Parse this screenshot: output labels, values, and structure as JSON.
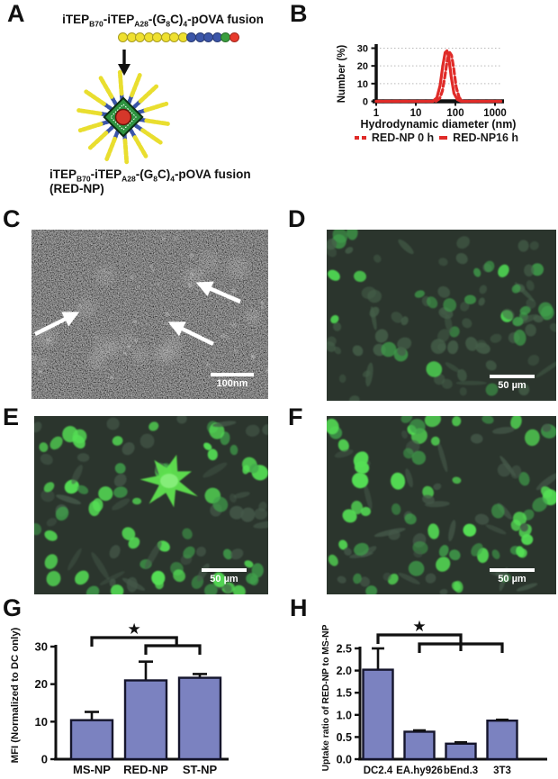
{
  "panels": {
    "a": {
      "label": "A",
      "formula_segments": [
        {
          "text": "iTEP"
        },
        {
          "text": "B70",
          "sub": true
        },
        {
          "text": "-iTEP"
        },
        {
          "text": "A28",
          "sub": true
        },
        {
          "text": "-(G"
        },
        {
          "text": "8",
          "sub": true
        },
        {
          "text": "C)"
        },
        {
          "text": "4",
          "sub": true
        },
        {
          "text": "-pOVA fusion"
        }
      ],
      "product_name": "(RED-NP)",
      "chain_segments": [
        {
          "name": "iTEP-B70-block",
          "color": "#efe02f",
          "count": 8
        },
        {
          "name": "iTEP-A28-block",
          "color": "#3b55a8",
          "count": 4
        },
        {
          "name": "G8C-linker",
          "color": "#3a9e3e",
          "count": 1
        },
        {
          "name": "pOVA",
          "color": "#e83a2c",
          "count": 1
        }
      ]
    },
    "b": {
      "label": "B"
    },
    "c": {
      "label": "C",
      "scale_bar_label": "100nm"
    },
    "d": {
      "label": "D",
      "scale_bar_label": "50 µm"
    },
    "e": {
      "label": "E",
      "scale_bar_label": "50 µm"
    },
    "f": {
      "label": "F",
      "scale_bar_label": "50 µm"
    },
    "g": {
      "label": "G"
    },
    "h": {
      "label": "H"
    }
  },
  "chart_data": [
    {
      "type": "line",
      "panel": "B",
      "xlabel": "Hydrodynamic diameter (nm)",
      "ylabel": "Number (%)",
      "x_scale": "log",
      "xlim": [
        1,
        1400
      ],
      "ylim": [
        0,
        30
      ],
      "xticks": [
        1,
        10,
        100,
        1000
      ],
      "xtick_labels": [
        "1",
        "10",
        "100",
        "1000"
      ],
      "yticks": [
        0,
        10,
        20,
        30
      ],
      "ytick_labels": [
        "0",
        "10",
        "20",
        "30"
      ],
      "grid": "dotted horizontal",
      "legend_position": "bottom",
      "series": [
        {
          "name": "RED-NP 0 h",
          "style": "dashed",
          "color": "#e02b28",
          "x": [
            32,
            40,
            47,
            55,
            63,
            72,
            80,
            90,
            105,
            125,
            155
          ],
          "y": [
            0,
            1.5,
            6,
            15,
            24,
            27.5,
            26,
            19,
            8,
            2,
            0
          ]
        },
        {
          "name": "RED-NP16 h",
          "style": "solid",
          "color": "#e02b28",
          "x": [
            27,
            34,
            41,
            48,
            55,
            61,
            68,
            78,
            92,
            112,
            140
          ],
          "y": [
            0,
            2,
            9,
            20,
            27.5,
            28.5,
            25,
            14,
            4.5,
            1,
            0
          ]
        }
      ]
    },
    {
      "type": "bar",
      "panel": "G",
      "categories": [
        "MS-NP",
        "RED-NP",
        "ST-NP"
      ],
      "values": [
        10.4,
        21,
        21.7
      ],
      "errors": [
        2.2,
        5,
        1
      ],
      "ylabel": "MFI (Normalized to DC only)",
      "ylim": [
        0,
        30
      ],
      "yticks": [
        0,
        10,
        20,
        30
      ],
      "ytick_labels": [
        "0",
        "10",
        "20",
        "30"
      ],
      "bar_color": "#7b82c0",
      "significance": {
        "symbol": "★",
        "brackets": [
          {
            "from": 0,
            "to": 1.57
          },
          {
            "from": 1,
            "to": 2
          }
        ]
      }
    },
    {
      "type": "bar",
      "panel": "H",
      "categories": [
        "DC2.4",
        "EA.hy926",
        "bEnd.3",
        "3T3"
      ],
      "values": [
        2.02,
        0.62,
        0.35,
        0.87
      ],
      "errors": [
        0.48,
        0.03,
        0.03,
        0.02
      ],
      "ylabel": "Uptake ratio of RED-NP to MS-NP",
      "ylim": [
        0,
        2.5
      ],
      "yticks": [
        0,
        0.5,
        1,
        1.5,
        2,
        2.5
      ],
      "ytick_labels": [
        "0.0",
        "0.5",
        "1.0",
        "1.5",
        "2.0",
        "2.5"
      ],
      "bar_color": "#7b82c0",
      "significance": {
        "symbol": "★",
        "brackets": [
          {
            "from": 0,
            "to": 2
          },
          {
            "from": 1,
            "to": 3,
            "mid": 2
          }
        ]
      }
    }
  ]
}
